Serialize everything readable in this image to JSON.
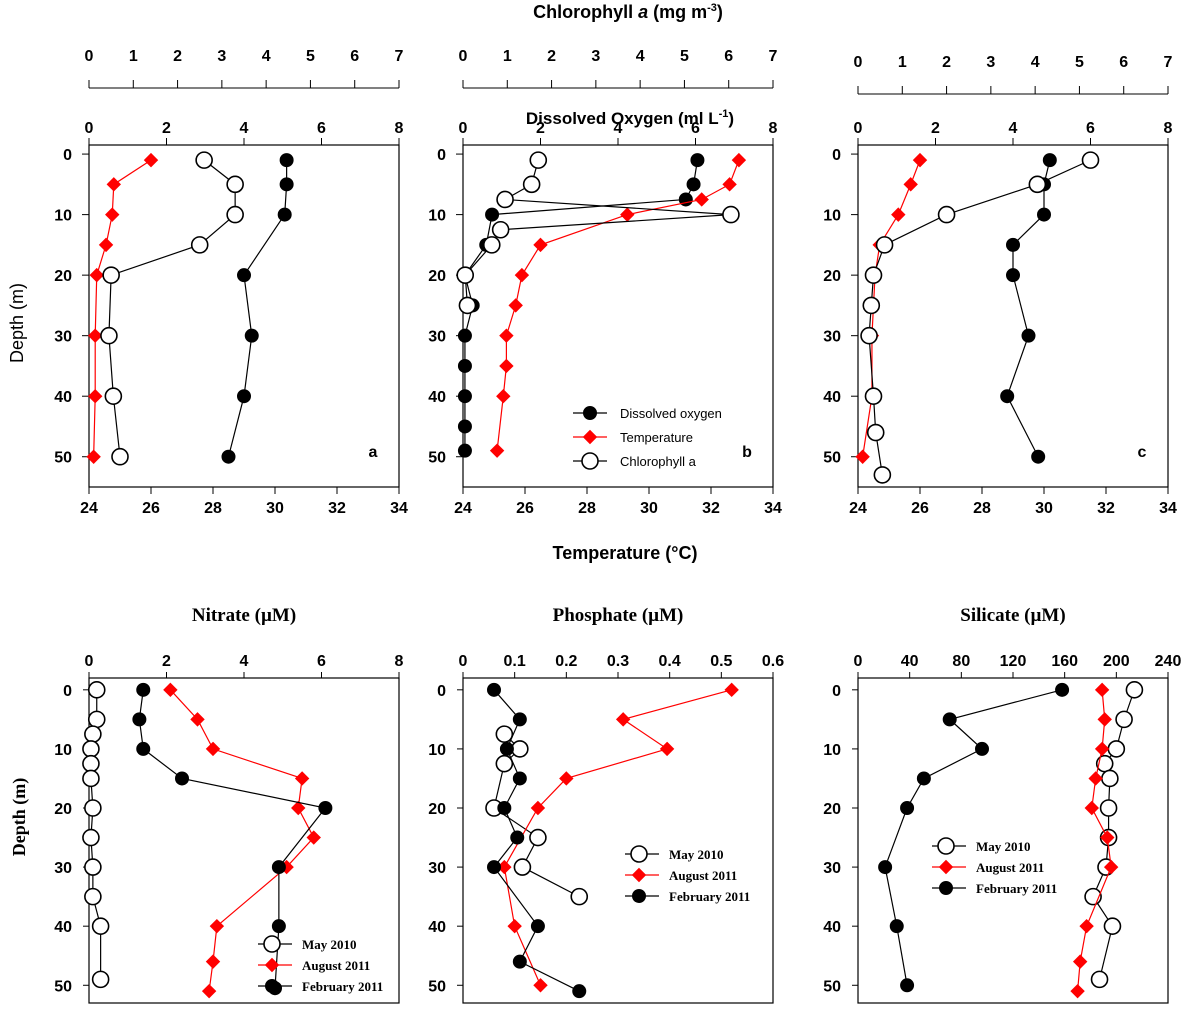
{
  "figure": {
    "top_label_chl_prefix": "Chlorophyll ",
    "top_label_chl_italic": "a",
    "top_label_chl_suffix": " (mg m",
    "top_label_chl_sup": "-3",
    "top_label_chl_close": ")",
    "top_label_do": "Dissolved Oxygen (ml L",
    "top_label_do_sup": "-1",
    "top_label_do_close": ")",
    "top_label_temp": "Temperature (°C)",
    "depth_label_top": "Depth (m)",
    "depth_label_bottom": "Depth (m)"
  },
  "colors": {
    "red": "#ff0000",
    "black": "#000000"
  },
  "chart_data": [
    {
      "type": "line",
      "panel": "a",
      "row": "top",
      "ylabel": "Depth (m)",
      "ylim": [
        55,
        -1.5
      ],
      "yticks": [
        0,
        10,
        20,
        30,
        40,
        50
      ],
      "axes": {
        "chlorophyll": {
          "label": "Chlorophyll a (mg m-3)",
          "lim": [
            0,
            7
          ],
          "ticks": [
            0,
            1,
            2,
            3,
            4,
            5,
            6,
            7
          ]
        },
        "oxygen": {
          "label": "Dissolved Oxygen (ml L-1)",
          "lim": [
            0,
            8
          ],
          "ticks": [
            0,
            2,
            4,
            6,
            8
          ]
        },
        "temperature": {
          "label": "Temperature (°C)",
          "lim": [
            24,
            34
          ],
          "ticks": [
            24,
            26,
            28,
            30,
            32,
            34
          ]
        }
      },
      "series": [
        {
          "name": "Dissolved oxygen",
          "axis": "oxygen",
          "marker": "filled-circle",
          "color": "#000000",
          "points": [
            [
              5.1,
              1
            ],
            [
              5.1,
              5
            ],
            [
              5.05,
              10
            ],
            [
              4.0,
              20
            ],
            [
              4.2,
              30
            ],
            [
              4.0,
              40
            ],
            [
              3.6,
              50
            ]
          ]
        },
        {
          "name": "Temperature",
          "axis": "temperature",
          "marker": "diamond",
          "color": "#ff0000",
          "points": [
            [
              26.0,
              1
            ],
            [
              24.8,
              5
            ],
            [
              24.75,
              10
            ],
            [
              24.55,
              15
            ],
            [
              24.25,
              20
            ],
            [
              24.2,
              30
            ],
            [
              24.2,
              40
            ],
            [
              24.15,
              50
            ]
          ]
        },
        {
          "name": "Chlorophyll a",
          "axis": "chlorophyll",
          "marker": "open-circle",
          "color": "#000000",
          "points": [
            [
              2.6,
              1
            ],
            [
              3.3,
              5
            ],
            [
              3.3,
              10
            ],
            [
              2.5,
              15
            ],
            [
              0.5,
              20
            ],
            [
              0.45,
              30
            ],
            [
              0.55,
              40
            ],
            [
              0.7,
              50
            ]
          ]
        }
      ],
      "annotations": [
        "a"
      ]
    },
    {
      "type": "line",
      "panel": "b",
      "row": "top",
      "ylim": [
        55,
        -1.5
      ],
      "yticks": [
        0,
        10,
        20,
        30,
        40,
        50
      ],
      "axes": {
        "chlorophyll": {
          "lim": [
            0,
            7
          ],
          "ticks": [
            0,
            1,
            2,
            3,
            4,
            5,
            6,
            7
          ]
        },
        "oxygen": {
          "lim": [
            0,
            8
          ],
          "ticks": [
            0,
            2,
            4,
            6,
            8
          ]
        },
        "temperature": {
          "lim": [
            24,
            34
          ],
          "ticks": [
            24,
            26,
            28,
            30,
            32,
            34
          ]
        }
      },
      "legend": {
        "position": "bottom-right",
        "entries": [
          "Dissolved oxygen",
          "Temperature",
          "Chlorophyll a"
        ]
      },
      "series": [
        {
          "name": "Dissolved oxygen",
          "axis": "oxygen",
          "marker": "filled-circle",
          "color": "#000000",
          "points": [
            [
              6.05,
              1
            ],
            [
              5.95,
              5
            ],
            [
              5.75,
              7.5
            ],
            [
              0.75,
              10
            ],
            [
              0.6,
              15
            ],
            [
              0.05,
              20
            ],
            [
              0.25,
              25
            ],
            [
              0.05,
              30
            ],
            [
              0.05,
              35
            ],
            [
              0.05,
              40
            ],
            [
              0.05,
              45
            ],
            [
              0.05,
              49
            ]
          ]
        },
        {
          "name": "Temperature",
          "axis": "temperature",
          "marker": "diamond",
          "color": "#ff0000",
          "points": [
            [
              32.9,
              1
            ],
            [
              32.6,
              5
            ],
            [
              31.7,
              7.5
            ],
            [
              29.3,
              10
            ],
            [
              26.5,
              15
            ],
            [
              25.9,
              20
            ],
            [
              25.7,
              25
            ],
            [
              25.4,
              30
            ],
            [
              25.4,
              35
            ],
            [
              25.3,
              40
            ],
            [
              25.1,
              49
            ]
          ]
        },
        {
          "name": "Chlorophyll a",
          "axis": "chlorophyll",
          "marker": "open-circle",
          "color": "#000000",
          "points": [
            [
              1.7,
              1
            ],
            [
              1.55,
              5
            ],
            [
              0.95,
              7.5
            ],
            [
              6.05,
              10
            ],
            [
              0.85,
              12.5
            ],
            [
              0.65,
              15
            ],
            [
              0.05,
              20
            ],
            [
              0.1,
              25
            ]
          ]
        }
      ],
      "annotations": [
        "b"
      ]
    },
    {
      "type": "line",
      "panel": "c",
      "row": "top",
      "ylim": [
        55,
        -1.5
      ],
      "yticks": [
        0,
        10,
        20,
        30,
        40,
        50
      ],
      "axes": {
        "chlorophyll": {
          "lim": [
            0,
            7
          ],
          "ticks": [
            0,
            1,
            2,
            3,
            4,
            5,
            6,
            7
          ]
        },
        "oxygen": {
          "lim": [
            0,
            8
          ],
          "ticks": [
            0,
            2,
            4,
            6,
            8
          ]
        },
        "temperature": {
          "lim": [
            24,
            34
          ],
          "ticks": [
            24,
            26,
            28,
            30,
            32,
            34
          ]
        }
      },
      "series": [
        {
          "name": "Dissolved oxygen",
          "axis": "oxygen",
          "marker": "filled-circle",
          "color": "#000000",
          "points": [
            [
              4.95,
              1
            ],
            [
              4.8,
              5
            ],
            [
              4.8,
              10
            ],
            [
              4.0,
              15
            ],
            [
              4.0,
              20
            ],
            [
              4.4,
              30
            ],
            [
              3.85,
              40
            ],
            [
              4.65,
              50
            ]
          ]
        },
        {
          "name": "Temperature",
          "axis": "temperature",
          "marker": "diamond",
          "color": "#ff0000",
          "points": [
            [
              26.0,
              1
            ],
            [
              25.7,
              5
            ],
            [
              25.3,
              10
            ],
            [
              24.7,
              15
            ],
            [
              24.55,
              20
            ],
            [
              24.45,
              30
            ],
            [
              24.45,
              40
            ],
            [
              24.15,
              50
            ]
          ]
        },
        {
          "name": "Chlorophyll a",
          "axis": "chlorophyll",
          "marker": "open-circle",
          "color": "#000000",
          "points": [
            [
              5.25,
              1
            ],
            [
              4.05,
              5
            ],
            [
              2.0,
              10
            ],
            [
              0.6,
              15
            ],
            [
              0.35,
              20
            ],
            [
              0.3,
              25
            ],
            [
              0.25,
              30
            ],
            [
              0.35,
              40
            ],
            [
              0.4,
              46
            ],
            [
              0.55,
              53
            ]
          ]
        }
      ],
      "annotations": [
        "c"
      ]
    },
    {
      "type": "line",
      "panel": "nitrate",
      "row": "bottom",
      "title": "Nitrate (µM)",
      "ylabel": "Depth (m)",
      "xlim": [
        0,
        8
      ],
      "xticks": [
        0,
        2,
        4,
        6,
        8
      ],
      "ylim": [
        53,
        -2
      ],
      "yticks": [
        0,
        10,
        20,
        30,
        40,
        50
      ],
      "legend": {
        "position": "bottom-right",
        "entries": [
          "May 2010",
          "August 2011",
          "February 2011"
        ]
      },
      "series": [
        {
          "name": "May 2010",
          "marker": "open-circle",
          "color": "#000000",
          "points": [
            [
              0.2,
              0
            ],
            [
              0.2,
              5
            ],
            [
              0.1,
              7.5
            ],
            [
              0.05,
              10
            ],
            [
              0.05,
              12.5
            ],
            [
              0.05,
              15
            ],
            [
              0.1,
              20
            ],
            [
              0.05,
              25
            ],
            [
              0.1,
              30
            ],
            [
              0.1,
              35
            ],
            [
              0.3,
              40
            ],
            [
              0.3,
              49
            ]
          ]
        },
        {
          "name": "August 2011",
          "marker": "diamond",
          "color": "#ff0000",
          "points": [
            [
              2.1,
              0
            ],
            [
              2.8,
              5
            ],
            [
              3.2,
              10
            ],
            [
              5.5,
              15
            ],
            [
              5.4,
              20
            ],
            [
              5.8,
              25
            ],
            [
              5.1,
              30
            ],
            [
              3.3,
              40
            ],
            [
              3.2,
              46
            ],
            [
              3.1,
              51
            ]
          ]
        },
        {
          "name": "February 2011",
          "marker": "filled-circle",
          "color": "#000000",
          "points": [
            [
              1.4,
              0
            ],
            [
              1.3,
              5
            ],
            [
              1.4,
              10
            ],
            [
              2.4,
              15
            ],
            [
              6.1,
              20
            ],
            [
              4.9,
              30
            ],
            [
              4.9,
              40
            ],
            [
              4.8,
              50.5
            ]
          ]
        }
      ]
    },
    {
      "type": "line",
      "panel": "phosphate",
      "row": "bottom",
      "title": "Phosphate (µM)",
      "xlim": [
        0,
        0.6
      ],
      "xticks": [
        0,
        0.1,
        0.2,
        0.3,
        0.4,
        0.5,
        0.6
      ],
      "ylim": [
        53,
        -2
      ],
      "yticks": [
        0,
        10,
        20,
        30,
        40,
        50
      ],
      "legend": {
        "position": "right",
        "entries": [
          "May 2010",
          "August 2011",
          "February 2011"
        ]
      },
      "series": [
        {
          "name": "May 2010",
          "marker": "open-circle",
          "color": "#000000",
          "points": [
            [
              0.08,
              7.5
            ],
            [
              0.11,
              10
            ],
            [
              0.08,
              12.5
            ],
            [
              0.06,
              20
            ],
            [
              0.145,
              25
            ],
            [
              0.115,
              30
            ],
            [
              0.225,
              35
            ]
          ]
        },
        {
          "name": "August 2011",
          "marker": "diamond",
          "color": "#ff0000",
          "points": [
            [
              0.52,
              0
            ],
            [
              0.31,
              5
            ],
            [
              0.395,
              10
            ],
            [
              0.2,
              15
            ],
            [
              0.145,
              20
            ],
            [
              0.08,
              30
            ],
            [
              0.1,
              40
            ],
            [
              0.15,
              50
            ]
          ]
        },
        {
          "name": "February 2011",
          "marker": "filled-circle",
          "color": "#000000",
          "points": [
            [
              0.06,
              0
            ],
            [
              0.11,
              5
            ],
            [
              0.085,
              10
            ],
            [
              0.11,
              15
            ],
            [
              0.08,
              20
            ],
            [
              0.105,
              25
            ],
            [
              0.06,
              30
            ],
            [
              0.145,
              40
            ],
            [
              0.11,
              46
            ],
            [
              0.225,
              51
            ]
          ]
        }
      ]
    },
    {
      "type": "line",
      "panel": "silicate",
      "row": "bottom",
      "title": "Silicate (µM)",
      "xlim": [
        0,
        240
      ],
      "xticks": [
        0,
        40,
        80,
        120,
        160,
        200,
        240
      ],
      "ylim": [
        53,
        -2
      ],
      "yticks": [
        0,
        10,
        20,
        30,
        40,
        50
      ],
      "legend": {
        "position": "right",
        "entries": [
          "May 2010",
          "August 2011",
          "February 2011"
        ]
      },
      "series": [
        {
          "name": "May 2010",
          "marker": "open-circle",
          "color": "#000000",
          "points": [
            [
              214,
              0
            ],
            [
              206,
              5
            ],
            [
              200,
              10
            ],
            [
              191,
              12.5
            ],
            [
              195,
              15
            ],
            [
              194,
              20
            ],
            [
              194,
              25
            ],
            [
              192,
              30
            ],
            [
              182,
              35
            ],
            [
              197,
              40
            ],
            [
              187,
              49
            ]
          ]
        },
        {
          "name": "August 2011",
          "marker": "diamond",
          "color": "#ff0000",
          "points": [
            [
              189,
              0
            ],
            [
              191,
              5
            ],
            [
              189,
              10
            ],
            [
              184,
              15
            ],
            [
              181,
              20
            ],
            [
              193,
              25
            ],
            [
              196,
              30
            ],
            [
              177,
              40
            ],
            [
              172,
              46
            ],
            [
              170,
              51
            ]
          ]
        },
        {
          "name": "February 2011",
          "marker": "filled-circle",
          "color": "#000000",
          "points": [
            [
              158,
              0
            ],
            [
              71,
              5
            ],
            [
              96,
              10
            ],
            [
              51,
              15
            ],
            [
              38,
              20
            ],
            [
              21,
              30
            ],
            [
              30,
              40
            ],
            [
              38,
              50
            ]
          ]
        }
      ]
    }
  ]
}
